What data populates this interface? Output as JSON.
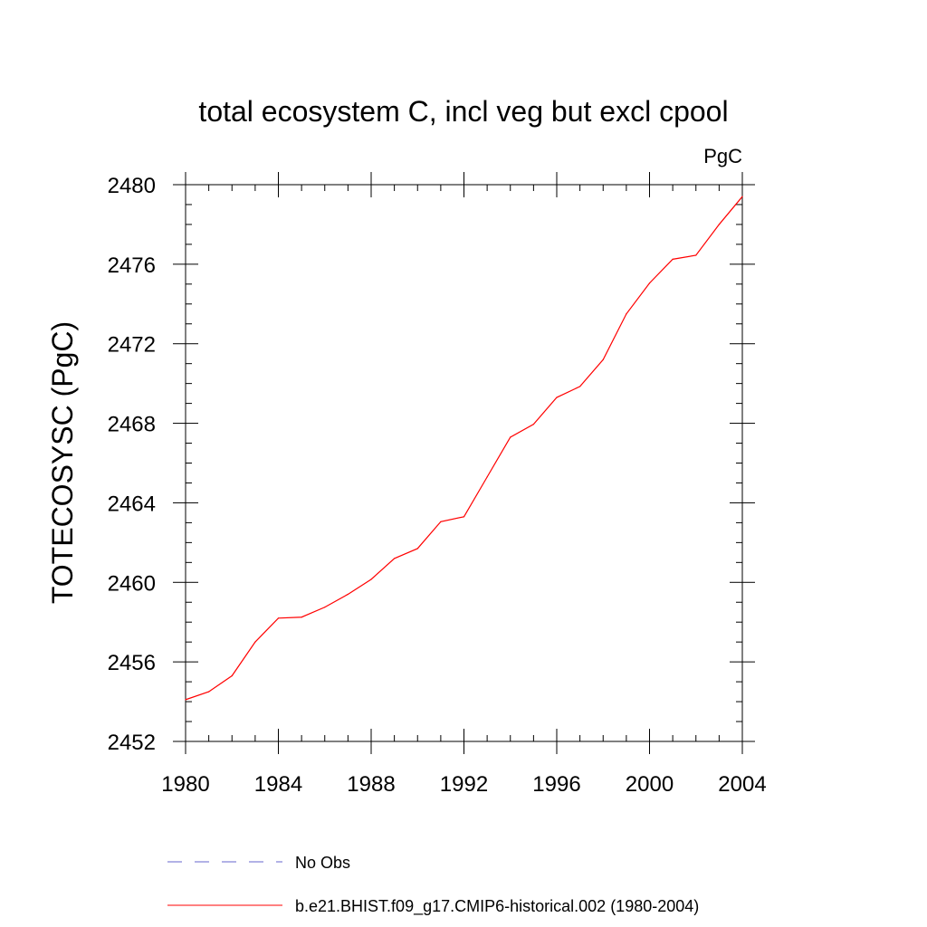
{
  "chart_data": {
    "type": "line",
    "title": "total ecosystem C, incl veg but excl cpool",
    "units_label": "PgC",
    "ylabel": "TOTECOSYSC  (PgC)",
    "xlabel": "",
    "xlim": [
      1980,
      2004
    ],
    "ylim": [
      2452,
      2480
    ],
    "x_ticks": [
      1980,
      1984,
      1988,
      1992,
      1996,
      2000,
      2004
    ],
    "y_ticks": [
      2452,
      2456,
      2460,
      2464,
      2468,
      2472,
      2476,
      2480
    ],
    "x_tick_labels": [
      "1980",
      "1984",
      "1988",
      "1992",
      "1996",
      "2000",
      "2004"
    ],
    "y_tick_labels": [
      "2452",
      "2456",
      "2460",
      "2464",
      "2468",
      "2472",
      "2476",
      "2480"
    ],
    "grid": false,
    "legend_position": "bottom",
    "series": [
      {
        "name": "b.e21.BHIST.f09_g17.CMIP6-historical.002 (1980-2004)",
        "color": "#ff0000",
        "style": "solid",
        "x": [
          1980,
          1981,
          1982,
          1983,
          1984,
          1985,
          1986,
          1987,
          1988,
          1989,
          1990,
          1991,
          1992,
          1993,
          1994,
          1995,
          1996,
          1997,
          1998,
          1999,
          2000,
          2001,
          2002,
          2003,
          2004
        ],
        "values": [
          2454.1,
          2454.5,
          2455.3,
          2457.0,
          2458.2,
          2458.25,
          2458.75,
          2459.4,
          2460.15,
          2461.2,
          2461.7,
          2463.05,
          2463.3,
          2465.3,
          2467.3,
          2467.95,
          2469.3,
          2469.85,
          2471.2,
          2473.5,
          2475.05,
          2476.25,
          2476.45,
          2478.0,
          2479.4
        ]
      }
    ],
    "legend": [
      {
        "name": "No Obs",
        "color": "#6666cc",
        "style": "dashed"
      },
      {
        "name": "b.e21.BHIST.f09_g17.CMIP6-historical.002 (1980-2004)",
        "color": "#ff0000",
        "style": "solid"
      }
    ]
  }
}
